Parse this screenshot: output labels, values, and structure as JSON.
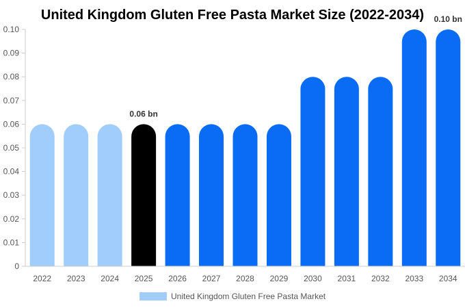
{
  "chart_data": {
    "type": "bar",
    "title": "United Kingdom Gluten Free Pasta Market Size (2022-2034)",
    "categories": [
      "2022",
      "2023",
      "2024",
      "2025",
      "2026",
      "2027",
      "2028",
      "2029",
      "2030",
      "2031",
      "2032",
      "2033",
      "2034"
    ],
    "series": [
      {
        "name": "United Kingdom Gluten Free Pasta Market",
        "values": [
          0.06,
          0.06,
          0.06,
          0.06,
          0.06,
          0.06,
          0.06,
          0.06,
          0.08,
          0.08,
          0.08,
          0.1,
          0.1
        ]
      }
    ],
    "bar_colors": [
      "#a0cdfc",
      "#a0cdfc",
      "#a0cdfc",
      "#000000",
      "#0a6cf5",
      "#0a6cf5",
      "#0a6cf5",
      "#0a6cf5",
      "#0a6cf5",
      "#0a6cf5",
      "#0a6cf5",
      "#0a6cf5",
      "#0a6cf5"
    ],
    "data_labels": [
      {
        "index": 3,
        "text": "0.06 bn"
      },
      {
        "index": 12,
        "text": "0.10 bn"
      }
    ],
    "yticks": [
      "0",
      "0.01",
      "0.02",
      "0.03",
      "0.04",
      "0.05",
      "0.06",
      "0.07",
      "0.08",
      "0.09",
      "0.10"
    ],
    "ylim": [
      0,
      0.1
    ],
    "grid": false,
    "legend_position": "bottom-center",
    "legend_color": "#a0cdfc"
  }
}
